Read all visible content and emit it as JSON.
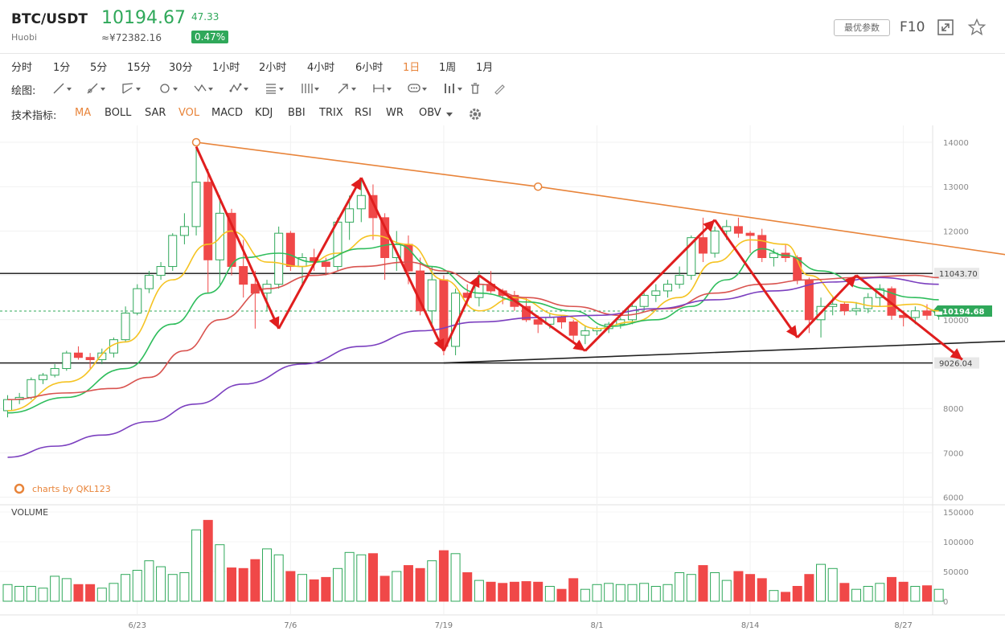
{
  "header": {
    "symbol": "BTC/USDT",
    "exchange": "Huobi",
    "price": "10194.67",
    "cny_price": "≈¥72382.16",
    "change": "47.33",
    "change_pct": "0.47%",
    "params_button": "最优参数",
    "f10_button": "F10",
    "up_color": "#2fa85a",
    "down_color": "#f04848"
  },
  "periods": [
    "分时",
    "1分",
    "5分",
    "15分",
    "30分",
    "1小时",
    "2小时",
    "4小时",
    "6小时",
    "1日",
    "1周",
    "1月"
  ],
  "active_period": "1日",
  "drawing": {
    "label": "绘图:",
    "tools": [
      "line-tool-icon",
      "ray-tool-icon",
      "channel-tool-icon",
      "circle-tool-icon",
      "zigzag-tool-icon",
      "pattern-tool-icon",
      "fib-tool-icon",
      "gann-tool-icon",
      "arrow-tool-icon",
      "range-tool-icon",
      "note-tool-icon",
      "marker-tool-icon",
      "trash-icon",
      "pencil-icon"
    ]
  },
  "indicators": {
    "label": "技术指标:",
    "items": [
      "MA",
      "BOLL",
      "SAR",
      "VOL",
      "MACD",
      "KDJ",
      "BBI",
      "TRIX",
      "RSI",
      "WR",
      "OBV"
    ],
    "active": [
      "MA",
      "VOL"
    ]
  },
  "watermark": "charts by QKL123",
  "volume_label": "VOLUME",
  "chart_data": {
    "type": "candlestick",
    "price_axis": {
      "ticks": [
        14000,
        13000,
        12000,
        11000,
        10000,
        9000,
        8000,
        7000,
        6000
      ],
      "ylim": [
        6000,
        14500
      ]
    },
    "volume_axis": {
      "ticks": [
        150000,
        100000,
        50000,
        0
      ],
      "ylim": [
        0,
        150000
      ]
    },
    "x_ticks": [
      {
        "label": "6/23",
        "index": 11
      },
      {
        "label": "7/6",
        "index": 24
      },
      {
        "label": "7/19",
        "index": 37
      },
      {
        "label": "8/1",
        "index": 50
      },
      {
        "label": "8/14",
        "index": 63
      },
      {
        "label": "8/27",
        "index": 76
      }
    ],
    "candles": [
      {
        "o": 7950,
        "h": 8300,
        "l": 7800,
        "c": 8200,
        "v": 28000
      },
      {
        "o": 8200,
        "h": 8350,
        "l": 8100,
        "c": 8250,
        "v": 25000
      },
      {
        "o": 8250,
        "h": 8700,
        "l": 8200,
        "c": 8650,
        "v": 25000
      },
      {
        "o": 8650,
        "h": 8800,
        "l": 8550,
        "c": 8750,
        "v": 22000
      },
      {
        "o": 8750,
        "h": 9000,
        "l": 8700,
        "c": 8900,
        "v": 42000
      },
      {
        "o": 8900,
        "h": 9300,
        "l": 8850,
        "c": 9250,
        "v": 38000
      },
      {
        "o": 9250,
        "h": 9400,
        "l": 9100,
        "c": 9150,
        "v": 28000
      },
      {
        "o": 9150,
        "h": 9250,
        "l": 8900,
        "c": 9100,
        "v": 28000
      },
      {
        "o": 9100,
        "h": 9350,
        "l": 9000,
        "c": 9250,
        "v": 22000
      },
      {
        "o": 9250,
        "h": 9600,
        "l": 9150,
        "c": 9550,
        "v": 30000
      },
      {
        "o": 9550,
        "h": 10300,
        "l": 9500,
        "c": 10150,
        "v": 45000
      },
      {
        "o": 10150,
        "h": 10800,
        "l": 10100,
        "c": 10700,
        "v": 52000
      },
      {
        "o": 10700,
        "h": 11100,
        "l": 10600,
        "c": 11000,
        "v": 68000
      },
      {
        "o": 11000,
        "h": 11300,
        "l": 10900,
        "c": 11200,
        "v": 58000
      },
      {
        "o": 11200,
        "h": 11950,
        "l": 11100,
        "c": 11900,
        "v": 45000
      },
      {
        "o": 11900,
        "h": 12400,
        "l": 11700,
        "c": 12100,
        "v": 48000
      },
      {
        "o": 12100,
        "h": 13900,
        "l": 11900,
        "c": 13100,
        "v": 120000
      },
      {
        "o": 13100,
        "h": 13400,
        "l": 10600,
        "c": 11350,
        "v": 136000
      },
      {
        "o": 11350,
        "h": 12800,
        "l": 10800,
        "c": 12400,
        "v": 95000
      },
      {
        "o": 12400,
        "h": 12500,
        "l": 11000,
        "c": 11200,
        "v": 56000
      },
      {
        "o": 11200,
        "h": 11800,
        "l": 10500,
        "c": 10800,
        "v": 55000
      },
      {
        "o": 10800,
        "h": 11100,
        "l": 9800,
        "c": 10600,
        "v": 70000
      },
      {
        "o": 10600,
        "h": 10900,
        "l": 10200,
        "c": 10800,
        "v": 88000
      },
      {
        "o": 10800,
        "h": 12100,
        "l": 10700,
        "c": 11950,
        "v": 78000
      },
      {
        "o": 11950,
        "h": 12000,
        "l": 11100,
        "c": 11200,
        "v": 50000
      },
      {
        "o": 11200,
        "h": 11500,
        "l": 10800,
        "c": 11400,
        "v": 45000
      },
      {
        "o": 11400,
        "h": 11600,
        "l": 11100,
        "c": 11300,
        "v": 36000
      },
      {
        "o": 11300,
        "h": 11400,
        "l": 11000,
        "c": 11200,
        "v": 40000
      },
      {
        "o": 11200,
        "h": 12300,
        "l": 11100,
        "c": 12200,
        "v": 55000
      },
      {
        "o": 12200,
        "h": 12800,
        "l": 11800,
        "c": 12500,
        "v": 82000
      },
      {
        "o": 12500,
        "h": 13200,
        "l": 12200,
        "c": 12800,
        "v": 78000
      },
      {
        "o": 12800,
        "h": 13050,
        "l": 11800,
        "c": 12300,
        "v": 80000
      },
      {
        "o": 12300,
        "h": 12400,
        "l": 10900,
        "c": 11400,
        "v": 42000
      },
      {
        "o": 11400,
        "h": 12000,
        "l": 11100,
        "c": 11700,
        "v": 50000
      },
      {
        "o": 11700,
        "h": 11900,
        "l": 10800,
        "c": 11100,
        "v": 60000
      },
      {
        "o": 11100,
        "h": 11400,
        "l": 10100,
        "c": 10200,
        "v": 55000
      },
      {
        "o": 10200,
        "h": 11200,
        "l": 9900,
        "c": 10900,
        "v": 68000
      },
      {
        "o": 10900,
        "h": 11000,
        "l": 9200,
        "c": 9400,
        "v": 85000
      },
      {
        "o": 9400,
        "h": 10700,
        "l": 9200,
        "c": 10600,
        "v": 80000
      },
      {
        "o": 10600,
        "h": 10800,
        "l": 10300,
        "c": 10500,
        "v": 48000
      },
      {
        "o": 10500,
        "h": 11100,
        "l": 10300,
        "c": 10800,
        "v": 35000
      },
      {
        "o": 10800,
        "h": 11100,
        "l": 10600,
        "c": 10650,
        "v": 32000
      },
      {
        "o": 10650,
        "h": 10700,
        "l": 10350,
        "c": 10550,
        "v": 30000
      },
      {
        "o": 10550,
        "h": 10650,
        "l": 10200,
        "c": 10300,
        "v": 32000
      },
      {
        "o": 10300,
        "h": 10500,
        "l": 9950,
        "c": 10000,
        "v": 33000
      },
      {
        "o": 10000,
        "h": 10100,
        "l": 9700,
        "c": 9900,
        "v": 32000
      },
      {
        "o": 9900,
        "h": 10150,
        "l": 9800,
        "c": 10050,
        "v": 25000
      },
      {
        "o": 10050,
        "h": 10100,
        "l": 9800,
        "c": 9950,
        "v": 20000
      },
      {
        "o": 9950,
        "h": 10000,
        "l": 9500,
        "c": 9650,
        "v": 38000
      },
      {
        "o": 9650,
        "h": 9850,
        "l": 9450,
        "c": 9750,
        "v": 20000
      },
      {
        "o": 9750,
        "h": 9850,
        "l": 9650,
        "c": 9800,
        "v": 28000
      },
      {
        "o": 9800,
        "h": 9950,
        "l": 9700,
        "c": 9900,
        "v": 30000
      },
      {
        "o": 9900,
        "h": 10050,
        "l": 9800,
        "c": 10000,
        "v": 28000
      },
      {
        "o": 10000,
        "h": 10400,
        "l": 9900,
        "c": 10300,
        "v": 28000
      },
      {
        "o": 10300,
        "h": 10600,
        "l": 10200,
        "c": 10550,
        "v": 30000
      },
      {
        "o": 10550,
        "h": 10800,
        "l": 10400,
        "c": 10650,
        "v": 25000
      },
      {
        "o": 10650,
        "h": 10900,
        "l": 10500,
        "c": 10800,
        "v": 28000
      },
      {
        "o": 10800,
        "h": 11200,
        "l": 10700,
        "c": 11000,
        "v": 48000
      },
      {
        "o": 11000,
        "h": 11900,
        "l": 10900,
        "c": 11850,
        "v": 45000
      },
      {
        "o": 11850,
        "h": 12300,
        "l": 11300,
        "c": 11500,
        "v": 60000
      },
      {
        "o": 11500,
        "h": 12100,
        "l": 11400,
        "c": 12000,
        "v": 48000
      },
      {
        "o": 12000,
        "h": 12250,
        "l": 11800,
        "c": 12100,
        "v": 35000
      },
      {
        "o": 12100,
        "h": 12300,
        "l": 11850,
        "c": 11950,
        "v": 50000
      },
      {
        "o": 11950,
        "h": 12000,
        "l": 11500,
        "c": 11900,
        "v": 45000
      },
      {
        "o": 11900,
        "h": 12050,
        "l": 11300,
        "c": 11400,
        "v": 38000
      },
      {
        "o": 11400,
        "h": 11600,
        "l": 11200,
        "c": 11500,
        "v": 18000
      },
      {
        "o": 11500,
        "h": 11700,
        "l": 11300,
        "c": 11400,
        "v": 15000
      },
      {
        "o": 11400,
        "h": 11450,
        "l": 10800,
        "c": 10900,
        "v": 25000
      },
      {
        "o": 10900,
        "h": 10950,
        "l": 9700,
        "c": 10000,
        "v": 45000
      },
      {
        "o": 10000,
        "h": 10500,
        "l": 9600,
        "c": 10300,
        "v": 62000
      },
      {
        "o": 10300,
        "h": 10500,
        "l": 10100,
        "c": 10350,
        "v": 55000
      },
      {
        "o": 10350,
        "h": 10400,
        "l": 10100,
        "c": 10200,
        "v": 30000
      },
      {
        "o": 10200,
        "h": 10400,
        "l": 10100,
        "c": 10250,
        "v": 20000
      },
      {
        "o": 10250,
        "h": 10600,
        "l": 10150,
        "c": 10500,
        "v": 25000
      },
      {
        "o": 10500,
        "h": 10800,
        "l": 10300,
        "c": 10700,
        "v": 30000
      },
      {
        "o": 10700,
        "h": 10750,
        "l": 10000,
        "c": 10100,
        "v": 40000
      },
      {
        "o": 10100,
        "h": 10200,
        "l": 9850,
        "c": 10050,
        "v": 32000
      },
      {
        "o": 10050,
        "h": 10300,
        "l": 9900,
        "c": 10200,
        "v": 25000
      },
      {
        "o": 10200,
        "h": 10350,
        "l": 10000,
        "c": 10100,
        "v": 26000
      },
      {
        "o": 10100,
        "h": 10250,
        "l": 10000,
        "c": 10195,
        "v": 20000
      }
    ],
    "ma_lines": [
      {
        "name": "MA5",
        "color": "#f5c322",
        "points": [
          [
            0,
            7950
          ],
          [
            5,
            8600
          ],
          [
            10,
            9500
          ],
          [
            14,
            10900
          ],
          [
            17,
            11700
          ],
          [
            19,
            12000
          ],
          [
            22,
            11300
          ],
          [
            25,
            11200
          ],
          [
            28,
            11500
          ],
          [
            31,
            11900
          ],
          [
            34,
            11700
          ],
          [
            37,
            10900
          ],
          [
            40,
            10200
          ],
          [
            43,
            10500
          ],
          [
            47,
            10100
          ],
          [
            50,
            9800
          ],
          [
            53,
            9950
          ],
          [
            57,
            10500
          ],
          [
            60,
            11300
          ],
          [
            63,
            11800
          ],
          [
            66,
            11700
          ],
          [
            68,
            11000
          ],
          [
            71,
            10400
          ],
          [
            74,
            10300
          ],
          [
            77,
            10350
          ],
          [
            79,
            10200
          ]
        ]
      },
      {
        "name": "MA10",
        "color": "#2ebd5c",
        "points": [
          [
            0,
            7900
          ],
          [
            5,
            8250
          ],
          [
            10,
            8900
          ],
          [
            14,
            9900
          ],
          [
            17,
            10600
          ],
          [
            20,
            11400
          ],
          [
            23,
            11500
          ],
          [
            26,
            11300
          ],
          [
            30,
            11600
          ],
          [
            33,
            11700
          ],
          [
            36,
            11200
          ],
          [
            40,
            10600
          ],
          [
            44,
            10400
          ],
          [
            48,
            10200
          ],
          [
            51,
            9850
          ],
          [
            55,
            10000
          ],
          [
            58,
            10300
          ],
          [
            61,
            10900
          ],
          [
            64,
            11600
          ],
          [
            66,
            11450
          ],
          [
            69,
            11100
          ],
          [
            73,
            10700
          ],
          [
            77,
            10500
          ],
          [
            79,
            10450
          ]
        ]
      },
      {
        "name": "MA20",
        "color": "#d9534f",
        "points": [
          [
            0,
            8200
          ],
          [
            5,
            8350
          ],
          [
            9,
            8450
          ],
          [
            12,
            8700
          ],
          [
            15,
            9300
          ],
          [
            18,
            10000
          ],
          [
            22,
            10700
          ],
          [
            26,
            11000
          ],
          [
            30,
            11200
          ],
          [
            34,
            11300
          ],
          [
            37,
            11100
          ],
          [
            40,
            10800
          ],
          [
            44,
            10500
          ],
          [
            48,
            10300
          ],
          [
            52,
            10100
          ],
          [
            56,
            10250
          ],
          [
            60,
            10600
          ],
          [
            64,
            10800
          ],
          [
            68,
            10900
          ],
          [
            72,
            10950
          ],
          [
            77,
            11000
          ],
          [
            79,
            10950
          ]
        ]
      },
      {
        "name": "MA60",
        "color": "#7b3fbf",
        "points": [
          [
            0,
            6900
          ],
          [
            4,
            7150
          ],
          [
            8,
            7400
          ],
          [
            12,
            7700
          ],
          [
            16,
            8100
          ],
          [
            20,
            8550
          ],
          [
            25,
            9000
          ],
          [
            30,
            9400
          ],
          [
            35,
            9750
          ],
          [
            40,
            9950
          ],
          [
            45,
            10050
          ],
          [
            50,
            10100
          ],
          [
            55,
            10250
          ],
          [
            60,
            10450
          ],
          [
            65,
            10650
          ],
          [
            70,
            10850
          ],
          [
            74,
            10950
          ],
          [
            79,
            10800
          ]
        ]
      }
    ],
    "h_levels": [
      {
        "value": 11043.7,
        "label": "11043.70"
      },
      {
        "value": 9026.04,
        "label": "9026.04"
      }
    ],
    "current_price": {
      "value": 10194.68,
      "label": "10194.68",
      "color": "#2fa85a"
    },
    "trendlines": [
      {
        "name": "descending-resistance",
        "color": "#e8843a",
        "points": [
          [
            16,
            14000
          ],
          [
            45,
            13000
          ],
          [
            89,
            11300
          ]
        ],
        "handles": [
          0,
          1
        ]
      },
      {
        "name": "ascending-support",
        "color": "#222222",
        "points": [
          [
            37,
            9026
          ],
          [
            89,
            9560
          ]
        ]
      }
    ],
    "arrow_path": [
      [
        16,
        13900
      ],
      [
        23,
        9800
      ],
      [
        30,
        13200
      ],
      [
        37,
        9300
      ],
      [
        40,
        11000
      ],
      [
        49,
        9300
      ],
      [
        60,
        12250
      ],
      [
        67,
        9600
      ],
      [
        72,
        11000
      ],
      [
        81,
        9100
      ]
    ]
  }
}
